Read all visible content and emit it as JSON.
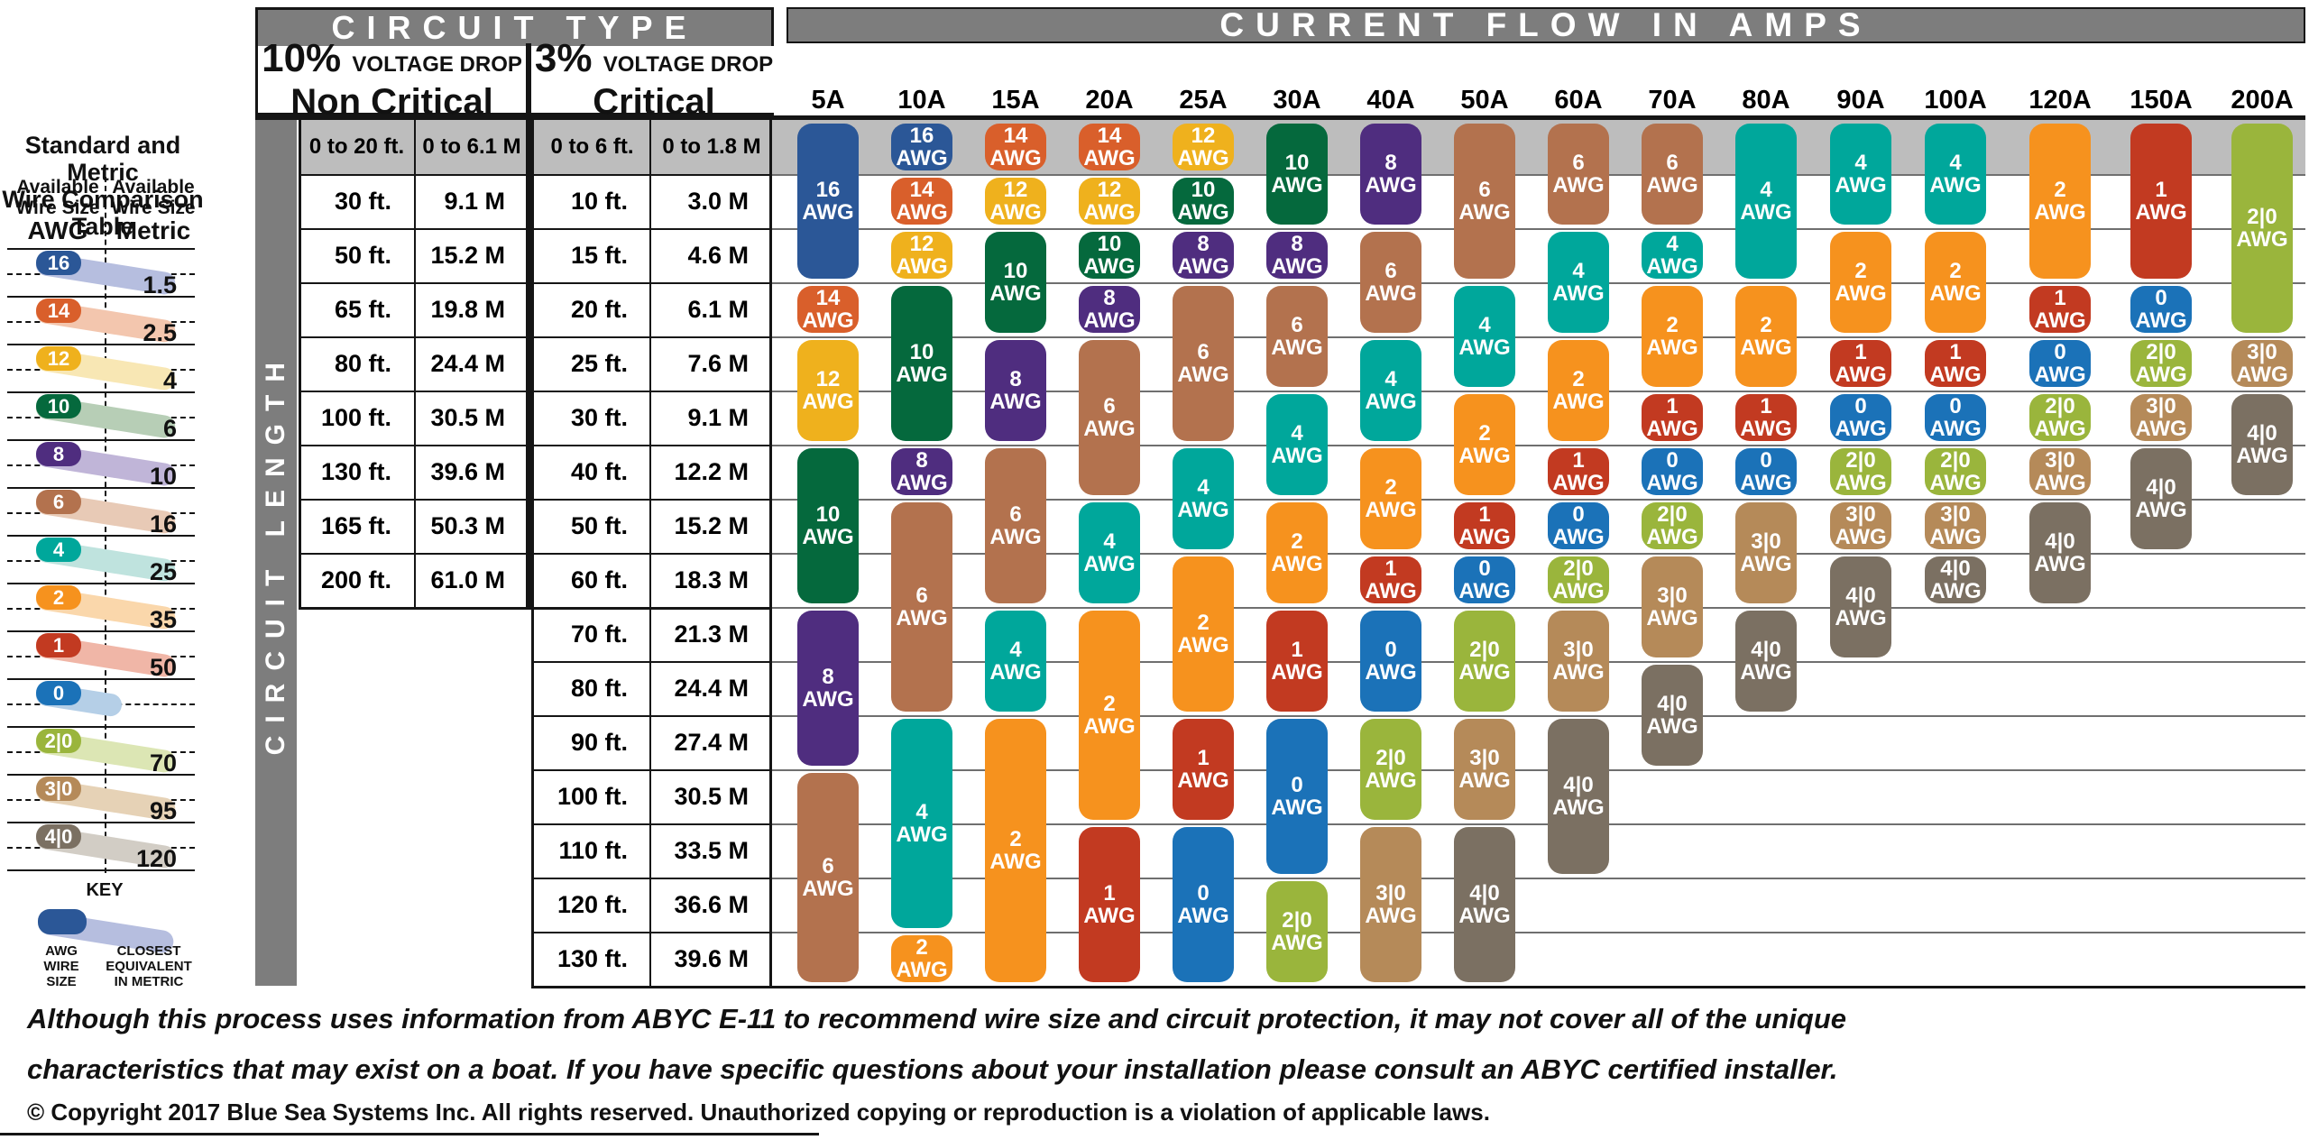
{
  "header": {
    "circuit_type": "CIRCUIT TYPE",
    "current_flow": "CURRENT FLOW IN AMPS",
    "non_critical_pct": "10%",
    "non_critical_drop": "VOLTAGE DROP",
    "non_critical_label": "Non Critical",
    "critical_pct": "3%",
    "critical_drop": "VOLTAGE DROP",
    "critical_label": "Critical",
    "circuit_length": "CIRCUIT LENGTH"
  },
  "comparison": {
    "title_line1": "Standard and Metric",
    "title_line2": "Wire Comparison Table",
    "left_header_line1": "Available",
    "left_header_line2": "Wire Size",
    "left_unit": "AWG",
    "right_header_line1": "Available",
    "right_header_line2": "Wire Size",
    "right_unit": "Metric",
    "rows": [
      {
        "awg": "16",
        "metric": "1.5"
      },
      {
        "awg": "14",
        "metric": "2.5"
      },
      {
        "awg": "12",
        "metric": "4"
      },
      {
        "awg": "10",
        "metric": "6"
      },
      {
        "awg": "8",
        "metric": "10"
      },
      {
        "awg": "6",
        "metric": "16"
      },
      {
        "awg": "4",
        "metric": "25"
      },
      {
        "awg": "2",
        "metric": "35"
      },
      {
        "awg": "1",
        "metric": "50"
      },
      {
        "awg": "0",
        "metric": ""
      },
      {
        "awg": "2|0",
        "metric": "70"
      },
      {
        "awg": "3|0",
        "metric": "95"
      },
      {
        "awg": "4|0",
        "metric": "120"
      }
    ],
    "key_title": "KEY",
    "key_left": [
      "AWG",
      "WIRE",
      "SIZE"
    ],
    "key_right": [
      "CLOSEST",
      "EQUIVALENT",
      "IN METRIC"
    ]
  },
  "wire_colors": {
    "16": "#2b5797",
    "14": "#d95f2b",
    "12": "#efb11d",
    "10": "#05693d",
    "8": "#4f2d7f",
    "6": "#b3724e",
    "4": "#00a79b",
    "2": "#f6921e",
    "1": "#c23a21",
    "0": "#1b72b8",
    "2|0": "#9ab53c",
    "3|0": "#b58a59",
    "4|0": "#7b7062"
  },
  "wire_tints": {
    "16": "#b6bedf",
    "14": "#f3c6ae",
    "12": "#f8e7b4",
    "10": "#b7ceb6",
    "8": "#c0b5d8",
    "6": "#e8cab6",
    "4": "#bfe3de",
    "2": "#fad7ab",
    "1": "#f0b6a7",
    "0": "#b5cfe7",
    "2|0": "#dce6b4",
    "3|0": "#e6d2b6",
    "4|0": "#d2cdc5"
  },
  "chart_data": {
    "type": "table",
    "awg_suffix": "AWG",
    "amps": [
      "5A",
      "10A",
      "15A",
      "20A",
      "25A",
      "30A",
      "40A",
      "50A",
      "60A",
      "70A",
      "80A",
      "90A",
      "100A",
      "120A",
      "150A",
      "200A"
    ],
    "length_rows": [
      {
        "non_critical_ft": "0 to 20 ft.",
        "non_critical_m": "0 to 6.1 M",
        "critical_ft": "0 to 6 ft.",
        "critical_m": "0 to 1.8 M",
        "header_row": true
      },
      {
        "non_critical_ft": "30 ft.",
        "non_critical_m": "9.1 M",
        "critical_ft": "10 ft.",
        "critical_m": "3.0 M"
      },
      {
        "non_critical_ft": "50 ft.",
        "non_critical_m": "15.2 M",
        "critical_ft": "15 ft.",
        "critical_m": "4.6 M"
      },
      {
        "non_critical_ft": "65 ft.",
        "non_critical_m": "19.8 M",
        "critical_ft": "20 ft.",
        "critical_m": "6.1 M"
      },
      {
        "non_critical_ft": "80 ft.",
        "non_critical_m": "24.4 M",
        "critical_ft": "25 ft.",
        "critical_m": "7.6 M"
      },
      {
        "non_critical_ft": "100 ft.",
        "non_critical_m": "30.5 M",
        "critical_ft": "30 ft.",
        "critical_m": "9.1 M"
      },
      {
        "non_critical_ft": "130 ft.",
        "non_critical_m": "39.6 M",
        "critical_ft": "40 ft.",
        "critical_m": "12.2 M"
      },
      {
        "non_critical_ft": "165 ft.",
        "non_critical_m": "50.3 M",
        "critical_ft": "50 ft.",
        "critical_m": "15.2 M"
      },
      {
        "non_critical_ft": "200 ft.",
        "non_critical_m": "61.0 M",
        "critical_ft": "60 ft.",
        "critical_m": "18.3 M"
      },
      {
        "non_critical_ft": "",
        "non_critical_m": "",
        "critical_ft": "70 ft.",
        "critical_m": "21.3 M"
      },
      {
        "non_critical_ft": "",
        "non_critical_m": "",
        "critical_ft": "80 ft.",
        "critical_m": "24.4 M"
      },
      {
        "non_critical_ft": "",
        "non_critical_m": "",
        "critical_ft": "90 ft.",
        "critical_m": "27.4 M"
      },
      {
        "non_critical_ft": "",
        "non_critical_m": "",
        "critical_ft": "100 ft.",
        "critical_m": "30.5 M"
      },
      {
        "non_critical_ft": "",
        "non_critical_m": "",
        "critical_ft": "110 ft.",
        "critical_m": "33.5 M"
      },
      {
        "non_critical_ft": "",
        "non_critical_m": "",
        "critical_ft": "120 ft.",
        "critical_m": "36.6 M"
      },
      {
        "non_critical_ft": "",
        "non_critical_m": "",
        "critical_ft": "130 ft.",
        "critical_m": "39.6 M"
      }
    ],
    "recommendations": {
      "5A": [
        {
          "size": "16",
          "rows": [
            1,
            3
          ]
        },
        {
          "size": "14",
          "rows": [
            4,
            4
          ]
        },
        {
          "size": "12",
          "rows": [
            5,
            6
          ]
        },
        {
          "size": "10",
          "rows": [
            7,
            9
          ]
        },
        {
          "size": "8",
          "rows": [
            10,
            12
          ]
        },
        {
          "size": "6",
          "rows": [
            13,
            16
          ]
        }
      ],
      "10A": [
        {
          "size": "16",
          "rows": [
            1,
            1
          ]
        },
        {
          "size": "14",
          "rows": [
            2,
            2
          ]
        },
        {
          "size": "12",
          "rows": [
            3,
            3
          ]
        },
        {
          "size": "10",
          "rows": [
            4,
            6
          ]
        },
        {
          "size": "8",
          "rows": [
            7,
            7
          ]
        },
        {
          "size": "6",
          "rows": [
            8,
            11
          ]
        },
        {
          "size": "4",
          "rows": [
            12,
            15
          ]
        },
        {
          "size": "2",
          "rows": [
            16,
            16
          ]
        }
      ],
      "15A": [
        {
          "size": "14",
          "rows": [
            1,
            1
          ]
        },
        {
          "size": "12",
          "rows": [
            2,
            2
          ]
        },
        {
          "size": "10",
          "rows": [
            3,
            4
          ]
        },
        {
          "size": "8",
          "rows": [
            5,
            6
          ]
        },
        {
          "size": "6",
          "rows": [
            7,
            9
          ]
        },
        {
          "size": "4",
          "rows": [
            10,
            11
          ]
        },
        {
          "size": "2",
          "rows": [
            12,
            16
          ]
        }
      ],
      "20A": [
        {
          "size": "14",
          "rows": [
            1,
            1
          ]
        },
        {
          "size": "12",
          "rows": [
            2,
            2
          ]
        },
        {
          "size": "10",
          "rows": [
            3,
            3
          ]
        },
        {
          "size": "8",
          "rows": [
            4,
            4
          ]
        },
        {
          "size": "6",
          "rows": [
            5,
            7
          ]
        },
        {
          "size": "4",
          "rows": [
            8,
            9
          ]
        },
        {
          "size": "2",
          "rows": [
            10,
            13
          ]
        },
        {
          "size": "1",
          "rows": [
            14,
            16
          ]
        }
      ],
      "25A": [
        {
          "size": "12",
          "rows": [
            1,
            1
          ]
        },
        {
          "size": "10",
          "rows": [
            2,
            2
          ]
        },
        {
          "size": "8",
          "rows": [
            3,
            3
          ]
        },
        {
          "size": "6",
          "rows": [
            4,
            6
          ]
        },
        {
          "size": "4",
          "rows": [
            7,
            8
          ]
        },
        {
          "size": "2",
          "rows": [
            9,
            11
          ]
        },
        {
          "size": "1",
          "rows": [
            12,
            13
          ]
        },
        {
          "size": "0",
          "rows": [
            14,
            16
          ]
        }
      ],
      "30A": [
        {
          "size": "10",
          "rows": [
            1,
            2
          ]
        },
        {
          "size": "8",
          "rows": [
            3,
            3
          ]
        },
        {
          "size": "6",
          "rows": [
            4,
            5
          ]
        },
        {
          "size": "4",
          "rows": [
            6,
            7
          ]
        },
        {
          "size": "2",
          "rows": [
            8,
            9
          ]
        },
        {
          "size": "1",
          "rows": [
            10,
            11
          ]
        },
        {
          "size": "0",
          "rows": [
            12,
            14
          ]
        },
        {
          "size": "2|0",
          "rows": [
            15,
            16
          ]
        }
      ],
      "40A": [
        {
          "size": "8",
          "rows": [
            1,
            2
          ]
        },
        {
          "size": "6",
          "rows": [
            3,
            4
          ]
        },
        {
          "size": "4",
          "rows": [
            5,
            6
          ]
        },
        {
          "size": "2",
          "rows": [
            7,
            8
          ]
        },
        {
          "size": "1",
          "rows": [
            9,
            9
          ]
        },
        {
          "size": "0",
          "rows": [
            10,
            11
          ]
        },
        {
          "size": "2|0",
          "rows": [
            12,
            13
          ]
        },
        {
          "size": "3|0",
          "rows": [
            14,
            16
          ]
        }
      ],
      "50A": [
        {
          "size": "6",
          "rows": [
            1,
            3
          ]
        },
        {
          "size": "4",
          "rows": [
            4,
            5
          ]
        },
        {
          "size": "2",
          "rows": [
            6,
            7
          ]
        },
        {
          "size": "1",
          "rows": [
            8,
            8
          ]
        },
        {
          "size": "0",
          "rows": [
            9,
            9
          ]
        },
        {
          "size": "2|0",
          "rows": [
            10,
            11
          ]
        },
        {
          "size": "3|0",
          "rows": [
            12,
            13
          ]
        },
        {
          "size": "4|0",
          "rows": [
            14,
            16
          ]
        }
      ],
      "60A": [
        {
          "size": "6",
          "rows": [
            1,
            2
          ]
        },
        {
          "size": "4",
          "rows": [
            3,
            4
          ]
        },
        {
          "size": "2",
          "rows": [
            5,
            6
          ]
        },
        {
          "size": "1",
          "rows": [
            7,
            7
          ]
        },
        {
          "size": "0",
          "rows": [
            8,
            8
          ]
        },
        {
          "size": "2|0",
          "rows": [
            9,
            9
          ]
        },
        {
          "size": "3|0",
          "rows": [
            10,
            11
          ]
        },
        {
          "size": "4|0",
          "rows": [
            12,
            14
          ]
        }
      ],
      "70A": [
        {
          "size": "6",
          "rows": [
            1,
            2
          ]
        },
        {
          "size": "4",
          "rows": [
            3,
            3
          ]
        },
        {
          "size": "2",
          "rows": [
            4,
            5
          ]
        },
        {
          "size": "1",
          "rows": [
            6,
            6
          ]
        },
        {
          "size": "0",
          "rows": [
            7,
            7
          ]
        },
        {
          "size": "2|0",
          "rows": [
            8,
            8
          ]
        },
        {
          "size": "3|0",
          "rows": [
            9,
            10
          ]
        },
        {
          "size": "4|0",
          "rows": [
            11,
            12
          ]
        }
      ],
      "80A": [
        {
          "size": "4",
          "rows": [
            1,
            3
          ]
        },
        {
          "size": "2",
          "rows": [
            4,
            5
          ]
        },
        {
          "size": "1",
          "rows": [
            6,
            6
          ]
        },
        {
          "size": "0",
          "rows": [
            7,
            7
          ]
        },
        {
          "size": "3|0",
          "rows": [
            8,
            9
          ]
        },
        {
          "size": "4|0",
          "rows": [
            10,
            11
          ]
        }
      ],
      "90A": [
        {
          "size": "4",
          "rows": [
            1,
            2
          ]
        },
        {
          "size": "2",
          "rows": [
            3,
            4
          ]
        },
        {
          "size": "1",
          "rows": [
            5,
            5
          ]
        },
        {
          "size": "0",
          "rows": [
            6,
            6
          ]
        },
        {
          "size": "2|0",
          "rows": [
            7,
            7
          ]
        },
        {
          "size": "3|0",
          "rows": [
            8,
            8
          ]
        },
        {
          "size": "4|0",
          "rows": [
            9,
            10
          ]
        }
      ],
      "100A": [
        {
          "size": "4",
          "rows": [
            1,
            2
          ]
        },
        {
          "size": "2",
          "rows": [
            3,
            4
          ]
        },
        {
          "size": "1",
          "rows": [
            5,
            5
          ]
        },
        {
          "size": "0",
          "rows": [
            6,
            6
          ]
        },
        {
          "size": "2|0",
          "rows": [
            7,
            7
          ]
        },
        {
          "size": "3|0",
          "rows": [
            8,
            8
          ]
        },
        {
          "size": "4|0",
          "rows": [
            9,
            9
          ]
        }
      ],
      "120A": [
        {
          "size": "2",
          "rows": [
            1,
            3
          ]
        },
        {
          "size": "1",
          "rows": [
            4,
            4
          ]
        },
        {
          "size": "0",
          "rows": [
            5,
            5
          ]
        },
        {
          "size": "2|0",
          "rows": [
            6,
            6
          ]
        },
        {
          "size": "3|0",
          "rows": [
            7,
            7
          ]
        },
        {
          "size": "4|0",
          "rows": [
            8,
            9
          ]
        }
      ],
      "150A": [
        {
          "size": "1",
          "rows": [
            1,
            3
          ]
        },
        {
          "size": "0",
          "rows": [
            4,
            4
          ]
        },
        {
          "size": "2|0",
          "rows": [
            5,
            5
          ]
        },
        {
          "size": "3|0",
          "rows": [
            6,
            6
          ]
        },
        {
          "size": "4|0",
          "rows": [
            7,
            8
          ]
        }
      ],
      "200A": [
        {
          "size": "2|0",
          "rows": [
            1,
            4
          ]
        },
        {
          "size": "3|0",
          "rows": [
            5,
            5
          ]
        },
        {
          "size": "4|0",
          "rows": [
            6,
            7
          ]
        }
      ]
    }
  },
  "footnote": {
    "line1": "Although this process uses information from ABYC E-11 to recommend wire size and circuit protection, it may not cover all of the unique",
    "line2": "characteristics that may exist on a boat. If you have specific questions about your installation please consult an ABYC certified installer."
  },
  "copyright": "© Copyright 2017 Blue Sea Systems Inc. All rights reserved. Unauthorized copying or reproduction is a violation of applicable laws."
}
